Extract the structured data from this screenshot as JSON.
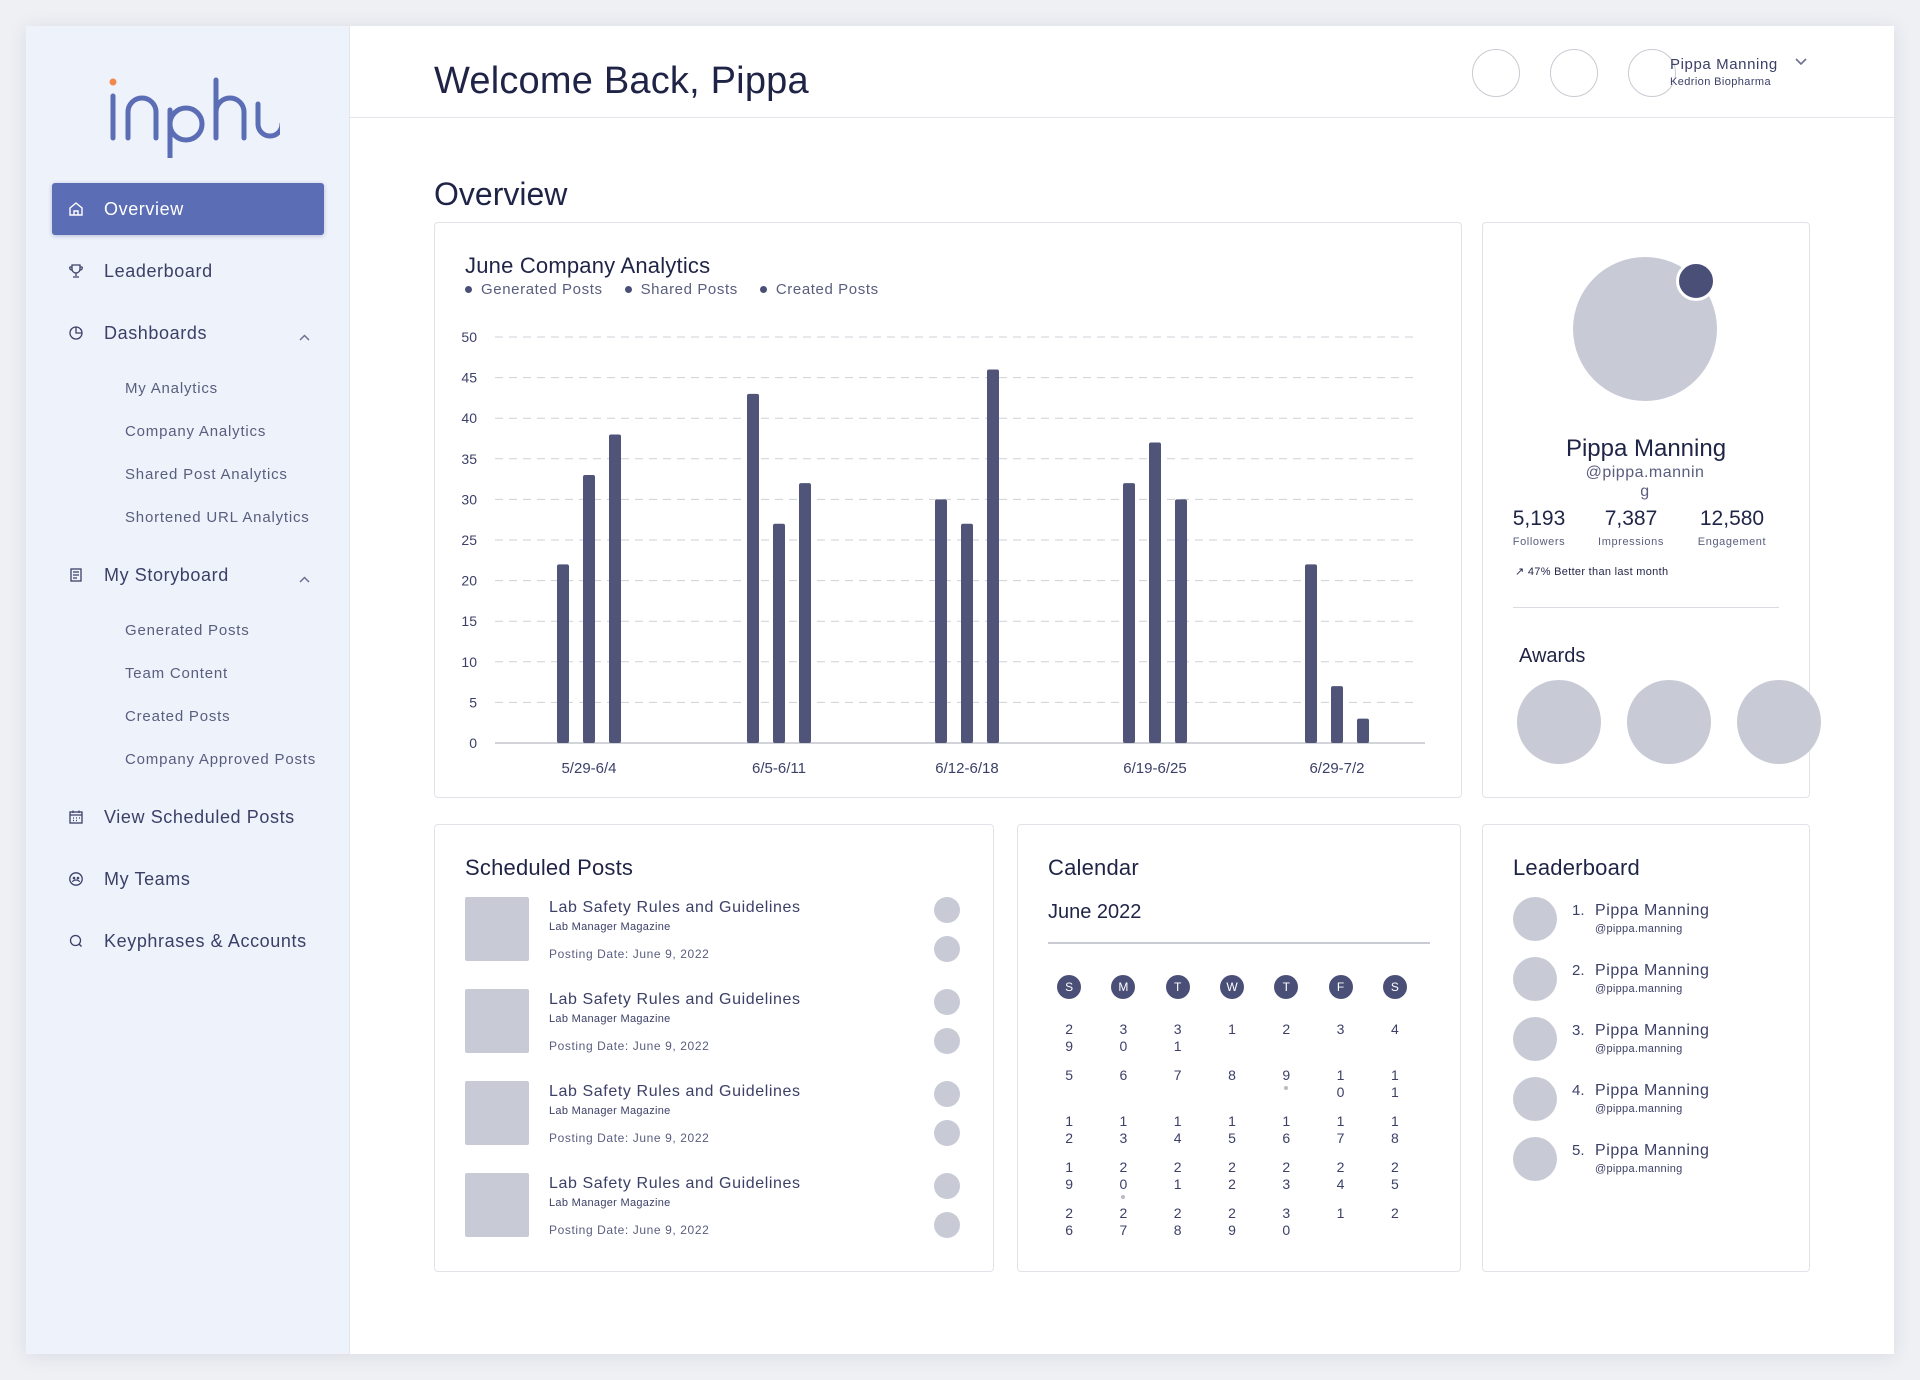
{
  "app": {
    "logo_text": "inphlu"
  },
  "sidebar": {
    "items": [
      {
        "label": "Overview",
        "icon": "home-icon",
        "active": true
      },
      {
        "label": "Leaderboard",
        "icon": "trophy-icon"
      },
      {
        "label": "Dashboards",
        "icon": "pie-chart-icon",
        "expanded": true,
        "children": [
          "My Analytics",
          "Company Analytics",
          "Shared Post Analytics",
          "Shortened URL Analytics"
        ]
      },
      {
        "label": "My Storyboard",
        "icon": "document-icon",
        "expanded": true,
        "children": [
          "Generated Posts",
          "Team Content",
          "Created Posts",
          "Company Approved Posts"
        ]
      },
      {
        "label": "View Scheduled Posts",
        "icon": "calendar-icon"
      },
      {
        "label": "My Teams",
        "icon": "team-icon"
      },
      {
        "label": "Keyphrases & Accounts",
        "icon": "search-icon"
      }
    ]
  },
  "header": {
    "welcome": "Welcome Back, Pippa",
    "user_name": "Pippa Manning",
    "user_company": "Kedrion Biopharma"
  },
  "overview": {
    "title": "Overview"
  },
  "chart_card": {
    "title": "June Company Analytics",
    "chart_data": {
      "type": "bar",
      "title": "June Company Analytics",
      "categories": [
        "5/29-6/4",
        "6/5-6/11",
        "6/12-6/18",
        "6/19-6/25",
        "6/29-7/2"
      ],
      "series": [
        {
          "name": "Generated Posts",
          "values": [
            22,
            43,
            30,
            32,
            22
          ]
        },
        {
          "name": "Shared Posts",
          "values": [
            33,
            27,
            27,
            37,
            7
          ]
        },
        {
          "name": "Created Posts",
          "values": [
            38,
            32,
            46,
            30,
            3
          ]
        }
      ],
      "ylim": [
        0,
        50
      ],
      "yticks": [
        0,
        5,
        10,
        15,
        20,
        25,
        30,
        35,
        40,
        45,
        50
      ],
      "grid": true,
      "legend_position": "top-left",
      "bar_color": "#4f5478"
    }
  },
  "profile": {
    "name": "Pippa Manning",
    "handle": "@pippa.manning",
    "stats": [
      {
        "value": "5,193",
        "label": "Followers"
      },
      {
        "value": "7,387",
        "label": "Impressions"
      },
      {
        "value": "12,580",
        "label": "Engagement"
      }
    ],
    "note": "47% Better than last month",
    "awards_title": "Awards"
  },
  "scheduled": {
    "title": "Scheduled Posts",
    "posts": [
      {
        "title": "Lab Safety Rules and Guidelines",
        "source": "Lab Manager Magazine",
        "date": "Posting Date: June 9, 2022"
      },
      {
        "title": "Lab Safety Rules and Guidelines",
        "source": "Lab Manager Magazine",
        "date": "Posting Date: June 9, 2022"
      },
      {
        "title": "Lab Safety Rules and Guidelines",
        "source": "Lab Manager Magazine",
        "date": "Posting Date: June 9, 2022"
      },
      {
        "title": "Lab Safety Rules and Guidelines",
        "source": "Lab Manager Magazine",
        "date": "Posting Date: June 9, 2022"
      }
    ]
  },
  "calendar": {
    "title": "Calendar",
    "month": "June 2022",
    "weekdays": [
      "S",
      "M",
      "T",
      "W",
      "T",
      "F",
      "S"
    ],
    "days": [
      {
        "d": "29"
      },
      {
        "d": "30"
      },
      {
        "d": "31"
      },
      {
        "d": "1"
      },
      {
        "d": "2"
      },
      {
        "d": "3"
      },
      {
        "d": "4"
      },
      {
        "d": "5"
      },
      {
        "d": "6"
      },
      {
        "d": "7"
      },
      {
        "d": "8"
      },
      {
        "d": "9",
        "dot": true
      },
      {
        "d": "10"
      },
      {
        "d": "11"
      },
      {
        "d": "12"
      },
      {
        "d": "13"
      },
      {
        "d": "14"
      },
      {
        "d": "15"
      },
      {
        "d": "16"
      },
      {
        "d": "17"
      },
      {
        "d": "18"
      },
      {
        "d": "19"
      },
      {
        "d": "20",
        "dot": true
      },
      {
        "d": "21"
      },
      {
        "d": "22"
      },
      {
        "d": "23"
      },
      {
        "d": "24"
      },
      {
        "d": "25"
      },
      {
        "d": "26"
      },
      {
        "d": "27"
      },
      {
        "d": "28"
      },
      {
        "d": "29"
      },
      {
        "d": "30"
      },
      {
        "d": "1"
      },
      {
        "d": "2"
      }
    ]
  },
  "leaderboard": {
    "title": "Leaderboard",
    "entries": [
      {
        "rank": "1.",
        "name": "Pippa Manning",
        "handle": "@pippa.manning"
      },
      {
        "rank": "2.",
        "name": "Pippa Manning",
        "handle": "@pippa.manning"
      },
      {
        "rank": "3.",
        "name": "Pippa Manning",
        "handle": "@pippa.manning"
      },
      {
        "rank": "4.",
        "name": "Pippa Manning",
        "handle": "@pippa.manning"
      },
      {
        "rank": "5.",
        "name": "Pippa Manning",
        "handle": "@pippa.manning"
      }
    ]
  }
}
